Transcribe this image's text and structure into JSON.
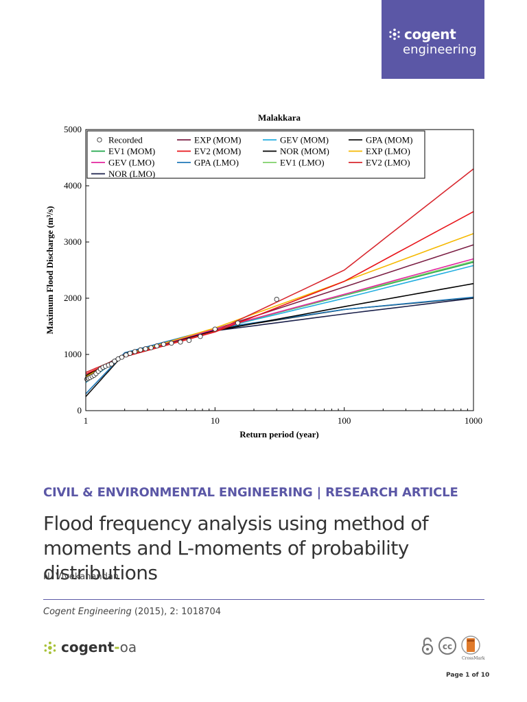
{
  "brand": {
    "name": "cogent",
    "subtitle": "engineering"
  },
  "article": {
    "category": "CIVIL & ENVIRONMENTAL ENGINEERING | RESEARCH ARTICLE",
    "title": "Flood frequency analysis using method of moments and L-moments of probability distributions",
    "author": "N. Vivekanandan",
    "journal": "Cogent Engineering",
    "citation_rest": " (2015), 2: 1018704"
  },
  "footer": {
    "logo_main": "cogent",
    "logo_dash": "-",
    "logo_oa": "oa",
    "crossmark": "CrossMark",
    "page": "Page 1 of 10"
  },
  "colors": {
    "brand_purple": "#5b57a6",
    "logo_green": "#a8c238"
  },
  "chart_data": {
    "type": "line",
    "title": "Malakkara",
    "xlabel": "Return period (year)",
    "ylabel": "Maximum Flood Discharge (m³/s)",
    "xscale": "log",
    "xlim": [
      1,
      1000
    ],
    "ylim": [
      0,
      5000
    ],
    "xticks": [
      1,
      10,
      100,
      1000
    ],
    "yticks": [
      0,
      1000,
      2000,
      3000,
      4000,
      5000
    ],
    "grid": false,
    "legend_position": "top-left",
    "recorded": {
      "name": "Recorded",
      "x": [
        1.02,
        1.05,
        1.08,
        1.12,
        1.16,
        1.2,
        1.25,
        1.3,
        1.36,
        1.42,
        1.5,
        1.58,
        1.67,
        1.78,
        1.9,
        2.05,
        2.2,
        2.4,
        2.65,
        2.9,
        3.2,
        3.55,
        4.0,
        4.6,
        5.4,
        6.3,
        7.7,
        10.0,
        15.0,
        30.0
      ],
      "y": [
        560,
        575,
        590,
        610,
        630,
        660,
        700,
        740,
        770,
        790,
        810,
        830,
        880,
        920,
        950,
        990,
        1020,
        1050,
        1080,
        1100,
        1120,
        1150,
        1180,
        1200,
        1220,
        1250,
        1320,
        1450,
        1560,
        1980
      ]
    },
    "series": [
      {
        "name": "EXP (MOM)",
        "color": "#7b1f45",
        "x": [
          1,
          2,
          10,
          100,
          1000
        ],
        "y": [
          600,
          980,
          1450,
          2200,
          2950
        ]
      },
      {
        "name": "GEV (MOM)",
        "color": "#22aee0",
        "x": [
          1,
          2,
          10,
          100,
          1000
        ],
        "y": [
          500,
          1000,
          1450,
          2000,
          2580
        ]
      },
      {
        "name": "GPA (MOM)",
        "color": "#111111",
        "x": [
          1,
          2,
          10,
          100,
          1000
        ],
        "y": [
          250,
          1020,
          1440,
          1800,
          2010
        ]
      },
      {
        "name": "EV1 (MOM)",
        "color": "#1fa64a",
        "x": [
          1,
          2,
          10,
          100,
          1000
        ],
        "y": [
          550,
          1000,
          1450,
          2050,
          2640
        ]
      },
      {
        "name": "EV2 (MOM)",
        "color": "#e8141a",
        "x": [
          1,
          2,
          10,
          100,
          1000
        ],
        "y": [
          650,
          960,
          1400,
          2300,
          3540
        ]
      },
      {
        "name": "NOR (MOM)",
        "color": "#000000",
        "x": [
          1,
          2,
          10,
          100,
          1000
        ],
        "y": [
          620,
          1000,
          1420,
          1850,
          2260
        ]
      },
      {
        "name": "EXP (LMO)",
        "color": "#f5b800",
        "x": [
          1,
          2,
          10,
          100,
          1000
        ],
        "y": [
          600,
          990,
          1470,
          2300,
          3150
        ]
      },
      {
        "name": "GEV (LMO)",
        "color": "#e2259e",
        "x": [
          1,
          2,
          10,
          100,
          1000
        ],
        "y": [
          560,
          1000,
          1450,
          2070,
          2700
        ]
      },
      {
        "name": "GPA (LMO)",
        "color": "#1f78b8",
        "x": [
          1,
          2,
          10,
          100,
          1000
        ],
        "y": [
          300,
          1030,
          1460,
          1800,
          2020
        ]
      },
      {
        "name": "EV1 (LMO)",
        "color": "#7fd06a",
        "x": [
          1,
          2,
          10,
          100,
          1000
        ],
        "y": [
          560,
          1000,
          1450,
          2060,
          2660
        ]
      },
      {
        "name": "EV2 (LMO)",
        "color": "#d8272e",
        "x": [
          1,
          2,
          10,
          100,
          1000
        ],
        "y": [
          680,
          970,
          1410,
          2500,
          4300
        ]
      },
      {
        "name": "NOR (LMO)",
        "color": "#1a1f4a",
        "x": [
          1,
          2,
          10,
          100,
          1000
        ],
        "y": [
          620,
          1010,
          1420,
          1720,
          2000
        ]
      }
    ]
  }
}
